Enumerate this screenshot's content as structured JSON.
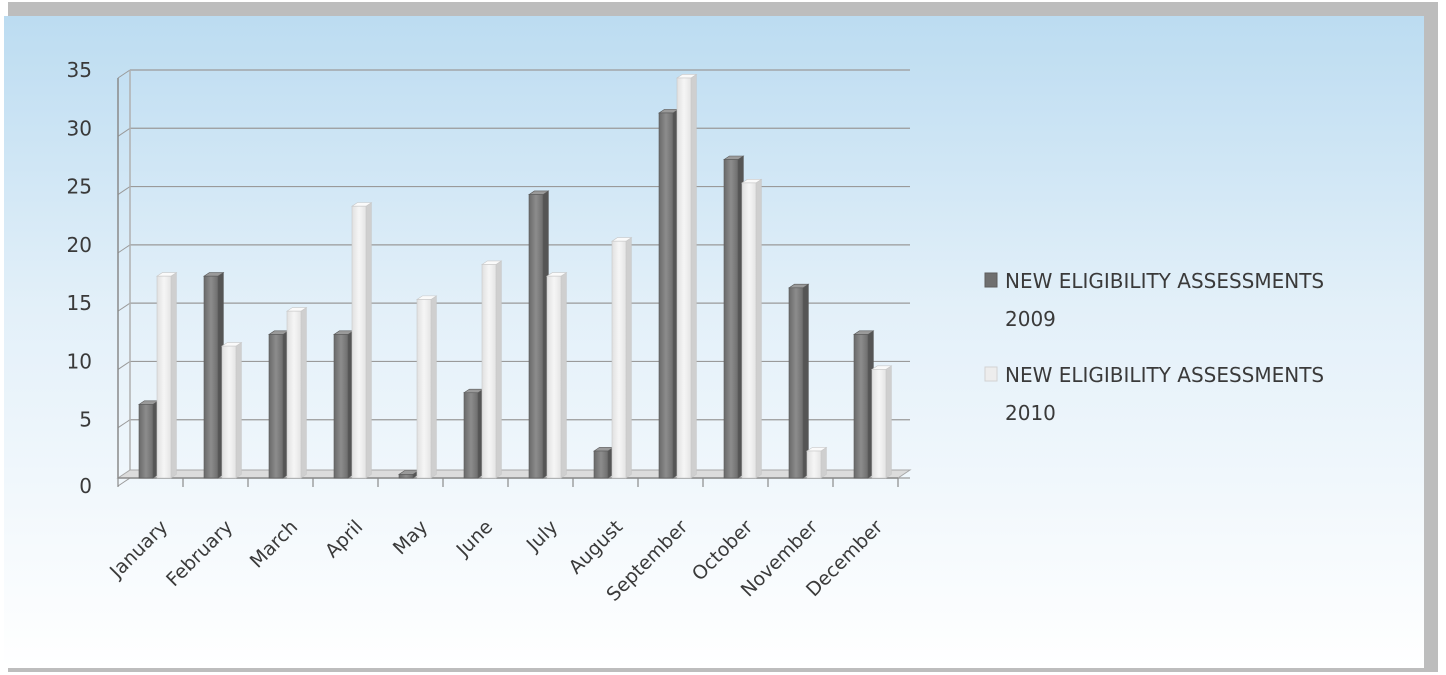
{
  "chart_data": {
    "type": "bar",
    "title": "",
    "xlabel": "",
    "ylabel": "",
    "categories": [
      "January",
      "February",
      "March",
      "April",
      "May",
      "June",
      "July",
      "August",
      "September",
      "October",
      "November",
      "December"
    ],
    "series": [
      {
        "name": "NEW ELIGIBILITY ASSESSMENTS 2009",
        "values": [
          7,
          18,
          13,
          13,
          1,
          8,
          25,
          3,
          32,
          28,
          17,
          13
        ],
        "color": "#7a7a7a"
      },
      {
        "name": "NEW ELIGIBILITY ASSESSMENTS 2010",
        "values": [
          18,
          12,
          15,
          24,
          16,
          19,
          18,
          21,
          35,
          26,
          3,
          10
        ],
        "color": "#ebebeb"
      }
    ],
    "ylim": [
      0,
      35
    ],
    "yticks": [
      "0",
      "5",
      "10",
      "15",
      "20",
      "25",
      "30",
      "35"
    ],
    "grid": true,
    "legend_position": "right",
    "legend": [
      {
        "line1": "NEW ELIGIBILITY ASSESSMENTS",
        "line2": "2009"
      },
      {
        "line1": "NEW ELIGIBILITY ASSESSMENTS",
        "line2": "2010"
      }
    ]
  }
}
